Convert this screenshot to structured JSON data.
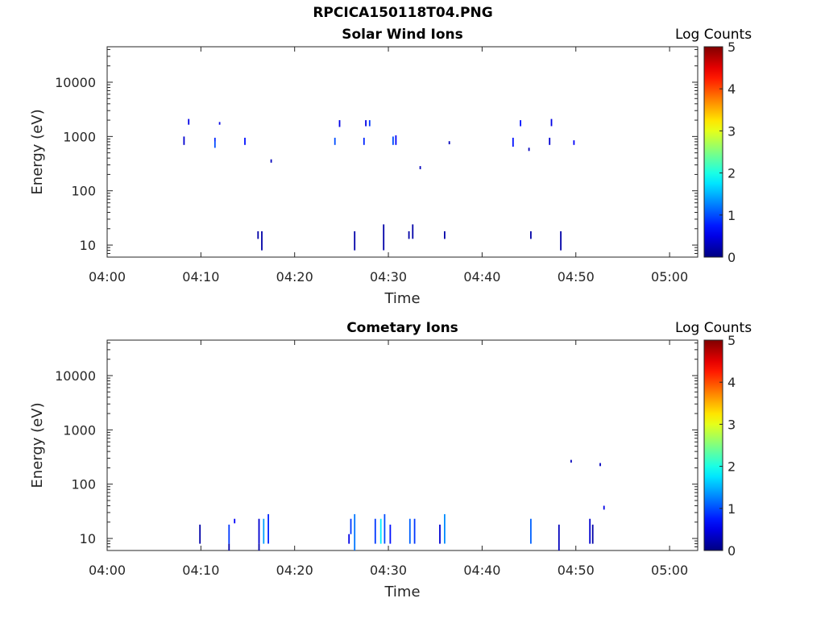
{
  "figure": {
    "title": "RPCICA150118T04.PNG"
  },
  "chart_data": [
    {
      "type": "heatmap",
      "title": "Solar Wind Ions",
      "xlabel": "Time",
      "ylabel": "Energy (eV)",
      "colorbar_label": "Log Counts",
      "x_ticks": [
        "04:00",
        "04:10",
        "04:20",
        "04:30",
        "04:40",
        "04:50",
        "05:00"
      ],
      "xlim_minutes": [
        0,
        63
      ],
      "y_ticks": [
        10,
        100,
        1000,
        10000
      ],
      "ylim": [
        6,
        45000
      ],
      "y_scale": "log",
      "colorbar_ticks": [
        0,
        1,
        2,
        3,
        4,
        5
      ],
      "clim": [
        0,
        5
      ],
      "cells": [
        {
          "t": 8.2,
          "e_lo": 700,
          "e_hi": 1000,
          "v": 0.4
        },
        {
          "t": 8.7,
          "e_lo": 1650,
          "e_hi": 2100,
          "v": 0.5
        },
        {
          "t": 11.5,
          "e_lo": 620,
          "e_hi": 800,
          "v": 1.0
        },
        {
          "t": 11.5,
          "e_lo": 800,
          "e_hi": 950,
          "v": 0.8
        },
        {
          "t": 12.0,
          "e_lo": 1650,
          "e_hi": 1850,
          "v": 0.5
        },
        {
          "t": 14.7,
          "e_lo": 700,
          "e_hi": 950,
          "v": 0.7
        },
        {
          "t": 17.5,
          "e_lo": 330,
          "e_hi": 380,
          "v": 0.3
        },
        {
          "t": 24.3,
          "e_lo": 700,
          "e_hi": 950,
          "v": 1.0
        },
        {
          "t": 24.8,
          "e_lo": 1500,
          "e_hi": 2000,
          "v": 0.5
        },
        {
          "t": 27.4,
          "e_lo": 700,
          "e_hi": 950,
          "v": 0.8
        },
        {
          "t": 27.6,
          "e_lo": 1550,
          "e_hi": 2000,
          "v": 0.5
        },
        {
          "t": 28.0,
          "e_lo": 1550,
          "e_hi": 2000,
          "v": 0.9
        },
        {
          "t": 30.5,
          "e_lo": 700,
          "e_hi": 1000,
          "v": 1.0
        },
        {
          "t": 30.8,
          "e_lo": 700,
          "e_hi": 1050,
          "v": 0.6
        },
        {
          "t": 33.4,
          "e_lo": 250,
          "e_hi": 285,
          "v": 0.3
        },
        {
          "t": 36.5,
          "e_lo": 720,
          "e_hi": 820,
          "v": 0.3
        },
        {
          "t": 43.3,
          "e_lo": 650,
          "e_hi": 950,
          "v": 0.7
        },
        {
          "t": 44.1,
          "e_lo": 1550,
          "e_hi": 2000,
          "v": 0.7
        },
        {
          "t": 45.0,
          "e_lo": 540,
          "e_hi": 620,
          "v": 0.3
        },
        {
          "t": 47.2,
          "e_lo": 700,
          "e_hi": 950,
          "v": 0.4
        },
        {
          "t": 47.4,
          "e_lo": 1550,
          "e_hi": 2100,
          "v": 0.5
        },
        {
          "t": 49.8,
          "e_lo": 700,
          "e_hi": 850,
          "v": 0.6
        },
        {
          "t": 16.1,
          "e_lo": 13,
          "e_hi": 18,
          "v": 0.2
        },
        {
          "t": 16.5,
          "e_lo": 8,
          "e_hi": 18,
          "v": 0.2
        },
        {
          "t": 26.4,
          "e_lo": 8,
          "e_hi": 18,
          "v": 0.2
        },
        {
          "t": 29.5,
          "e_lo": 8,
          "e_hi": 24,
          "v": 0.2
        },
        {
          "t": 32.2,
          "e_lo": 13,
          "e_hi": 18,
          "v": 0.2
        },
        {
          "t": 32.6,
          "e_lo": 13,
          "e_hi": 24,
          "v": 0.2
        },
        {
          "t": 36.0,
          "e_lo": 13,
          "e_hi": 18,
          "v": 0.2
        },
        {
          "t": 45.2,
          "e_lo": 13,
          "e_hi": 18,
          "v": 0.2
        },
        {
          "t": 48.4,
          "e_lo": 8,
          "e_hi": 18,
          "v": 0.2
        }
      ]
    },
    {
      "type": "heatmap",
      "title": "Cometary Ions",
      "xlabel": "Time",
      "ylabel": "Energy (eV)",
      "colorbar_label": "Log Counts",
      "x_ticks": [
        "04:00",
        "04:10",
        "04:20",
        "04:30",
        "04:40",
        "04:50",
        "05:00"
      ],
      "xlim_minutes": [
        0,
        63
      ],
      "y_ticks": [
        10,
        100,
        1000,
        10000
      ],
      "ylim": [
        6,
        45000
      ],
      "y_scale": "log",
      "colorbar_ticks": [
        0,
        1,
        2,
        3,
        4,
        5
      ],
      "clim": [
        0,
        5
      ],
      "cells": [
        {
          "t": 9.9,
          "e_lo": 8,
          "e_hi": 18,
          "v": 0.2
        },
        {
          "t": 13.0,
          "e_lo": 6,
          "e_hi": 8,
          "v": 0.2
        },
        {
          "t": 13.0,
          "e_lo": 8,
          "e_hi": 18,
          "v": 0.9
        },
        {
          "t": 13.6,
          "e_lo": 19,
          "e_hi": 23,
          "v": 0.6
        },
        {
          "t": 16.2,
          "e_lo": 8,
          "e_hi": 23,
          "v": 0.4
        },
        {
          "t": 16.2,
          "e_lo": 6,
          "e_hi": 8,
          "v": 0.2
        },
        {
          "t": 16.7,
          "e_lo": 8,
          "e_hi": 23,
          "v": 1.4
        },
        {
          "t": 17.2,
          "e_lo": 8,
          "e_hi": 28,
          "v": 0.8
        },
        {
          "t": 25.8,
          "e_lo": 8,
          "e_hi": 12,
          "v": 0.5
        },
        {
          "t": 26.0,
          "e_lo": 12,
          "e_hi": 23,
          "v": 0.9
        },
        {
          "t": 26.4,
          "e_lo": 6,
          "e_hi": 28,
          "v": 1.2
        },
        {
          "t": 28.6,
          "e_lo": 8,
          "e_hi": 23,
          "v": 0.9
        },
        {
          "t": 29.2,
          "e_lo": 8,
          "e_hi": 23,
          "v": 1.8
        },
        {
          "t": 29.6,
          "e_lo": 8,
          "e_hi": 28,
          "v": 1.0
        },
        {
          "t": 30.2,
          "e_lo": 8,
          "e_hi": 18,
          "v": 0.7
        },
        {
          "t": 32.3,
          "e_lo": 8,
          "e_hi": 23,
          "v": 1.1
        },
        {
          "t": 32.8,
          "e_lo": 8,
          "e_hi": 23,
          "v": 0.9
        },
        {
          "t": 35.5,
          "e_lo": 8,
          "e_hi": 18,
          "v": 0.4
        },
        {
          "t": 36.0,
          "e_lo": 8,
          "e_hi": 28,
          "v": 1.3
        },
        {
          "t": 45.2,
          "e_lo": 8,
          "e_hi": 23,
          "v": 1.1
        },
        {
          "t": 48.2,
          "e_lo": 6,
          "e_hi": 18,
          "v": 0.3
        },
        {
          "t": 51.5,
          "e_lo": 8,
          "e_hi": 23,
          "v": 0.4
        },
        {
          "t": 51.8,
          "e_lo": 8,
          "e_hi": 18,
          "v": 0.2
        },
        {
          "t": 49.5,
          "e_lo": 250,
          "e_hi": 280,
          "v": 0.3
        },
        {
          "t": 52.6,
          "e_lo": 215,
          "e_hi": 245,
          "v": 0.3
        },
        {
          "t": 53.0,
          "e_lo": 34,
          "e_hi": 40,
          "v": 0.5
        }
      ]
    }
  ]
}
